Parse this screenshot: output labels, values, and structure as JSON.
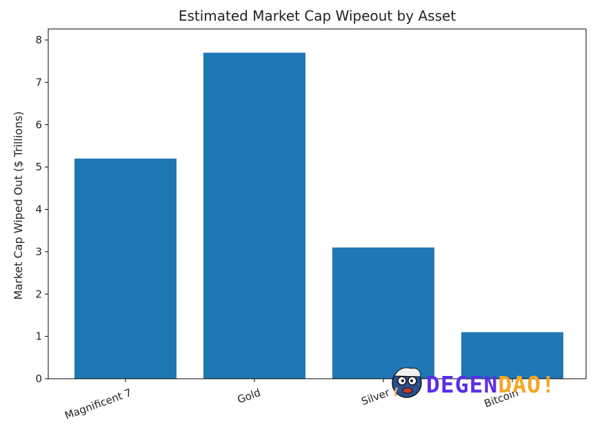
{
  "chart_data": {
    "type": "bar",
    "title": "Estimated Market Cap Wipeout by Asset",
    "xlabel": "",
    "ylabel": "Market Cap Wiped Out ($ Trillions)",
    "categories": [
      "Magnificent 7",
      "Gold",
      "Silver",
      "Bitcoin"
    ],
    "values": [
      5.2,
      7.7,
      3.1,
      1.1
    ],
    "ylim": [
      0,
      8
    ],
    "yticks": [
      "0",
      "1",
      "2",
      "3",
      "4",
      "5",
      "6",
      "7",
      "8"
    ],
    "bar_color": "#1f77b4",
    "grid": false,
    "x_tick_rotation": "20 degrees"
  },
  "watermark": {
    "text_part1": "DEGEN",
    "text_part2": "DAO!",
    "color_part1": "#5b2ee8",
    "color_part2": "#f5a623",
    "icon": "cartoon-face-logo-icon"
  }
}
